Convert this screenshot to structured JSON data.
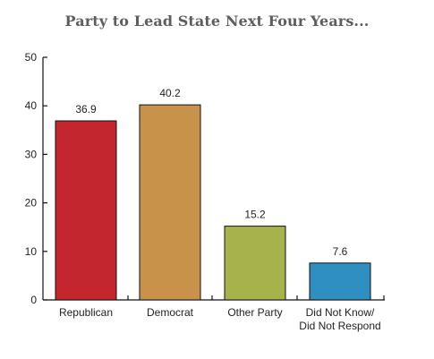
{
  "chart_data": {
    "type": "bar",
    "title": "Party to Lead State Next Four Years...",
    "xlabel": "",
    "ylabel": "",
    "ylim": [
      0,
      50
    ],
    "yticks": [
      0,
      10,
      20,
      30,
      40,
      50
    ],
    "grid": false,
    "categories": [
      [
        "Republican"
      ],
      [
        "Democrat"
      ],
      [
        "Other Party"
      ],
      [
        "Did Not Know/",
        "Did Not Respond"
      ]
    ],
    "values": [
      36.9,
      40.2,
      15.2,
      7.6
    ],
    "value_labels": [
      "36.9",
      "40.2",
      "15.2",
      "7.6"
    ],
    "colors": [
      "#c4262e",
      "#c8924b",
      "#a8b24c",
      "#2f8fc1"
    ]
  }
}
